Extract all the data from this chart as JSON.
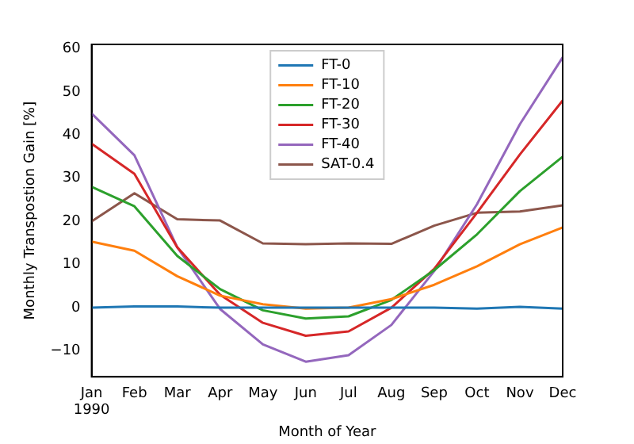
{
  "chart_data": {
    "type": "line",
    "xlabel": "Month of Year",
    "ylabel": "Monthly Transpostion Gain [%]",
    "categories": [
      "Jan\n1990",
      "Feb",
      "Mar",
      "Apr",
      "May",
      "Jun",
      "Jul",
      "Aug",
      "Sep",
      "Oct",
      "Nov",
      "Dec"
    ],
    "series": [
      {
        "name": "FT-0",
        "color": "#1f77b4",
        "values": [
          0,
          0.3,
          0.3,
          0,
          0,
          0,
          0,
          0,
          0,
          -0.2,
          0.2,
          -0.2
        ]
      },
      {
        "name": "FT-10",
        "color": "#ff7f0e",
        "values": [
          15.3,
          13.2,
          7.3,
          2.8,
          0.8,
          -0.2,
          0,
          2,
          5.3,
          9.6,
          14.7,
          18.6
        ]
      },
      {
        "name": "FT-20",
        "color": "#2ca02c",
        "values": [
          28,
          23.5,
          12,
          4.3,
          -0.6,
          -2.5,
          -2,
          1.8,
          8.7,
          17,
          27,
          35
        ]
      },
      {
        "name": "FT-30",
        "color": "#d62728",
        "values": [
          38,
          31,
          14,
          3,
          -3.5,
          -6.5,
          -5.5,
          0,
          9,
          22,
          35.5,
          48
        ]
      },
      {
        "name": "FT-40",
        "color": "#9467bd",
        "values": [
          45,
          35.3,
          14,
          -0.3,
          -8.5,
          -12.5,
          -11,
          -4,
          8.5,
          24,
          42.5,
          58
        ]
      },
      {
        "name": "SAT-0.4",
        "color": "#8c564b",
        "values": [
          20,
          26.5,
          20.5,
          20.2,
          14.9,
          14.7,
          14.9,
          14.8,
          19,
          22,
          22.3,
          23.7
        ]
      }
    ],
    "ylim": [
      -16,
      61
    ],
    "yticks": [
      -10,
      0,
      10,
      20,
      30,
      40,
      50,
      60
    ],
    "grid": false,
    "legend": "top",
    "marker": "none"
  }
}
